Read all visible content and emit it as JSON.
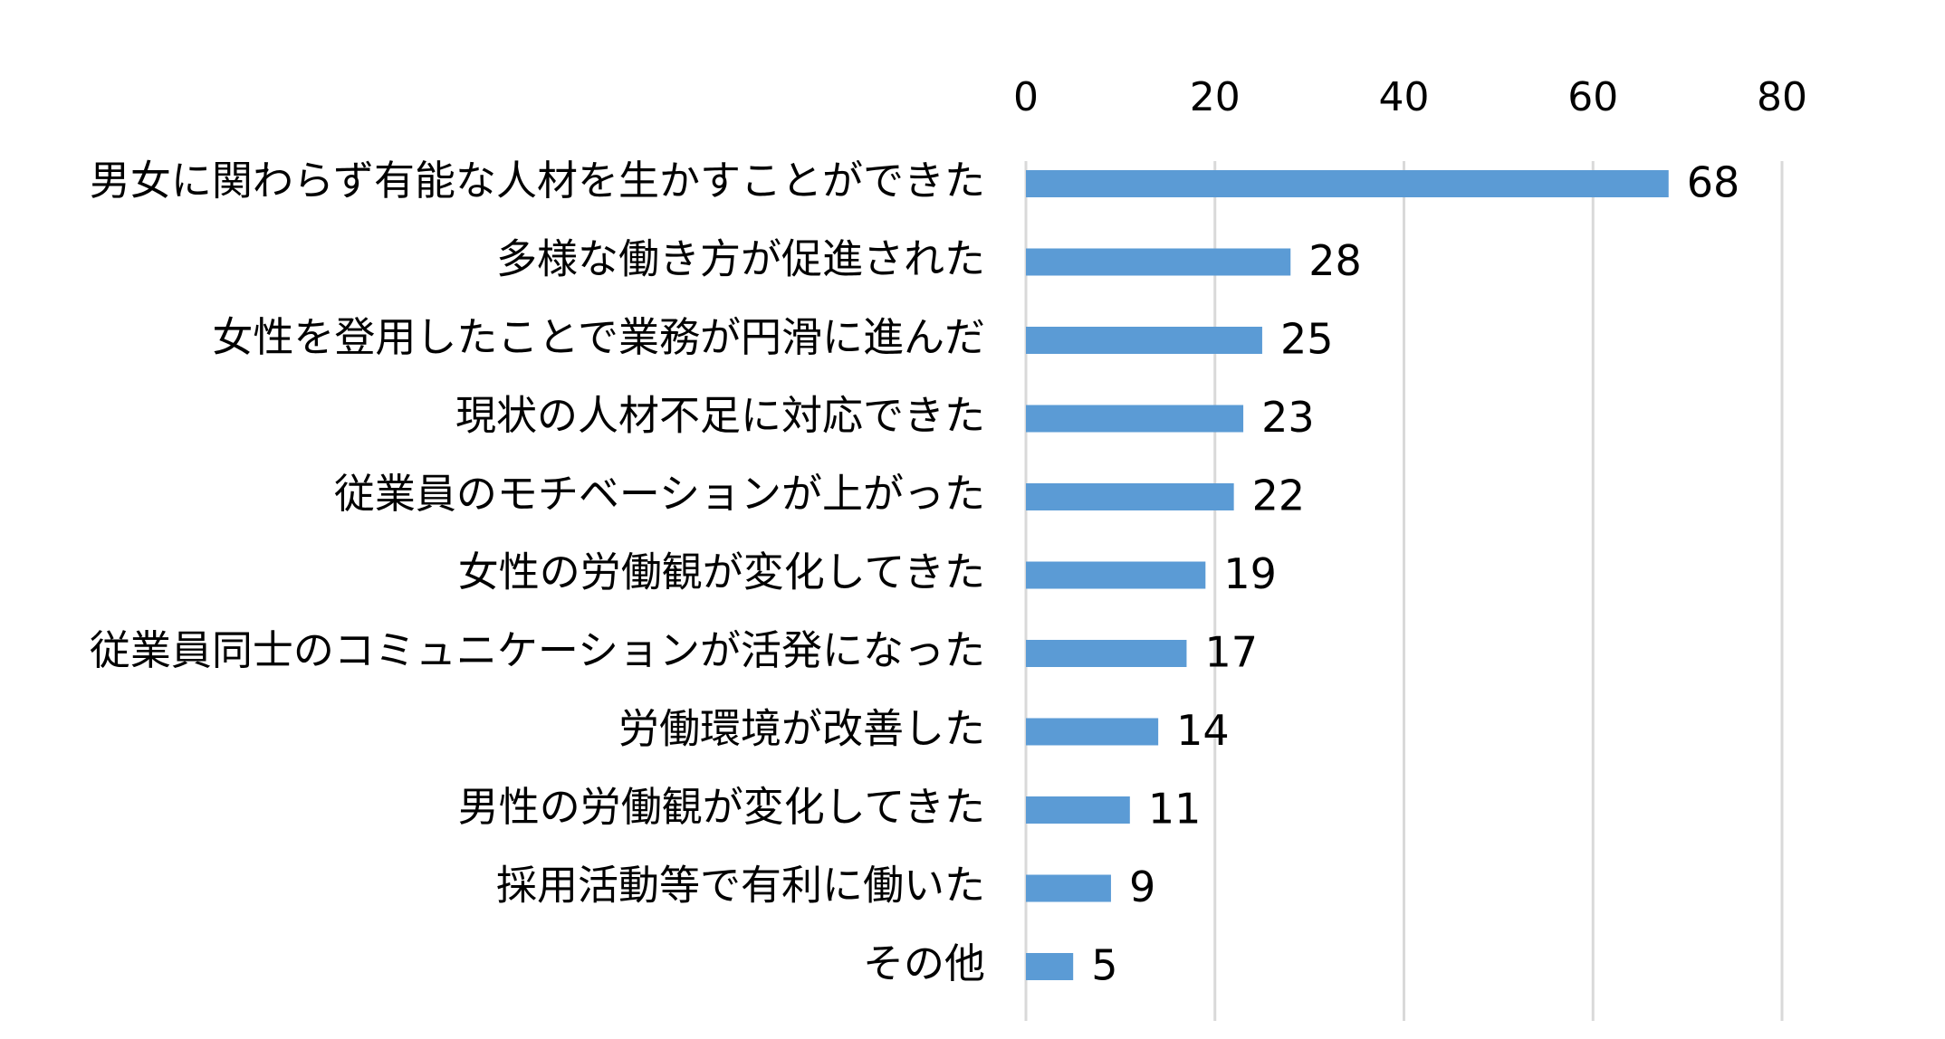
{
  "chart_data": {
    "type": "bar",
    "orientation": "horizontal",
    "categories": [
      "男女に関わらず有能な人材を生かすことができた",
      "多様な働き方が促進された",
      "女性を登用したことで業務が円滑に進んだ",
      "現状の人材不足に対応できた",
      "従業員のモチベーションが上がった",
      "女性の労働観が変化してきた",
      "従業員同士のコミュニケーションが活発になった",
      "労働環境が改善した",
      "男性の労働観が変化してきた",
      "採用活動等で有利に働いた",
      "その他"
    ],
    "values": [
      68,
      28,
      25,
      23,
      22,
      19,
      17,
      14,
      11,
      9,
      5
    ],
    "xlim": [
      0,
      80
    ],
    "xticks": [
      0,
      20,
      40,
      60,
      80
    ],
    "x_axis_position": "top",
    "grid": true,
    "data_labels": true,
    "bar_color": "#5b9bd5"
  }
}
